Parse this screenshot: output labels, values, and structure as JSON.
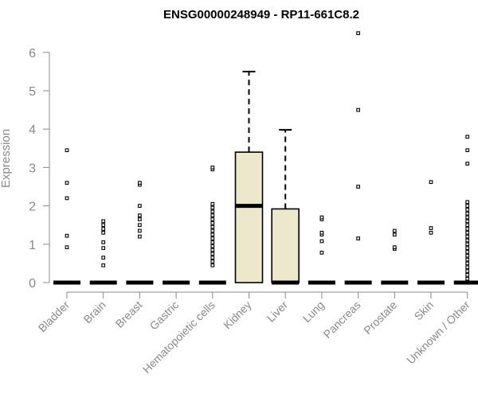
{
  "chart_data": {
    "type": "box",
    "title": "ENSG00000248949 - RP11-661C8.2",
    "xlabel": "",
    "ylabel": "Expression",
    "ylim": [
      0,
      6.6
    ],
    "yticks": [
      0,
      1,
      2,
      3,
      4,
      5,
      6
    ],
    "colors": {
      "box_fill": "#ede7cc",
      "stroke": "#000000",
      "axis": "#888888"
    },
    "categories": [
      "Bladder",
      "Brain",
      "Breast",
      "Gastric",
      "Hematopoietic cells",
      "Kidney",
      "Liver",
      "Lung",
      "Pancreas",
      "Prostate",
      "Skin",
      "Unknown / Other"
    ],
    "boxes": [
      {
        "category": "Bladder",
        "q1": 0,
        "median": 0,
        "q3": 0,
        "whisker_low": 0,
        "whisker_high": 0,
        "outliers": [
          0.92,
          1.22,
          2.2,
          2.6,
          3.45
        ]
      },
      {
        "category": "Brain",
        "q1": 0,
        "median": 0,
        "q3": 0,
        "whisker_low": 0,
        "whisker_high": 0,
        "outliers": [
          0.45,
          0.65,
          0.9,
          1.05,
          1.3,
          1.4,
          1.5,
          1.6
        ]
      },
      {
        "category": "Breast",
        "q1": 0,
        "median": 0,
        "q3": 0,
        "whisker_low": 0,
        "whisker_high": 0,
        "outliers": [
          1.2,
          1.35,
          1.5,
          1.65,
          1.75,
          2.0,
          2.55,
          2.6
        ]
      },
      {
        "category": "Gastric",
        "q1": 0,
        "median": 0,
        "q3": 0,
        "whisker_low": 0,
        "whisker_high": 0,
        "outliers": []
      },
      {
        "category": "Hematopoietic cells",
        "q1": 0,
        "median": 0,
        "q3": 0,
        "whisker_low": 0,
        "whisker_high": 0,
        "outliers": [
          0.45,
          0.55,
          0.65,
          0.75,
          0.85,
          0.95,
          1.05,
          1.15,
          1.25,
          1.35,
          1.45,
          1.55,
          1.65,
          1.75,
          1.85,
          1.95,
          2.05,
          2.95,
          3.0
        ]
      },
      {
        "category": "Kidney",
        "q1": 0,
        "median": 2.0,
        "q3": 3.4,
        "whisker_low": 0,
        "whisker_high": 5.5,
        "outliers": []
      },
      {
        "category": "Liver",
        "q1": 0,
        "median": 0,
        "q3": 1.92,
        "whisker_low": 0,
        "whisker_high": 3.98,
        "outliers": []
      },
      {
        "category": "Lung",
        "q1": 0,
        "median": 0,
        "q3": 0,
        "whisker_low": 0,
        "whisker_high": 0,
        "outliers": [
          0.78,
          1.08,
          1.25,
          1.3,
          1.65,
          1.7
        ]
      },
      {
        "category": "Pancreas",
        "q1": 0,
        "median": 0,
        "q3": 0,
        "whisker_low": 0,
        "whisker_high": 0,
        "outliers": [
          1.15,
          2.5,
          4.5,
          6.5
        ]
      },
      {
        "category": "Prostate",
        "q1": 0,
        "median": 0,
        "q3": 0,
        "whisker_low": 0,
        "whisker_high": 0,
        "outliers": [
          0.88,
          0.92,
          1.25,
          1.35
        ]
      },
      {
        "category": "Skin",
        "q1": 0,
        "median": 0,
        "q3": 0,
        "whisker_low": 0,
        "whisker_high": 0,
        "outliers": [
          1.3,
          1.42,
          2.62
        ]
      },
      {
        "category": "Unknown / Other",
        "q1": 0,
        "median": 0,
        "q3": 0,
        "whisker_low": 0,
        "whisker_high": 0,
        "outliers": [
          0.1,
          0.2,
          0.3,
          0.4,
          0.5,
          0.6,
          0.7,
          0.8,
          0.9,
          1.0,
          1.1,
          1.2,
          1.3,
          1.4,
          1.5,
          1.6,
          1.7,
          1.8,
          1.9,
          2.0,
          2.1,
          3.1,
          3.45,
          3.8
        ]
      }
    ]
  }
}
